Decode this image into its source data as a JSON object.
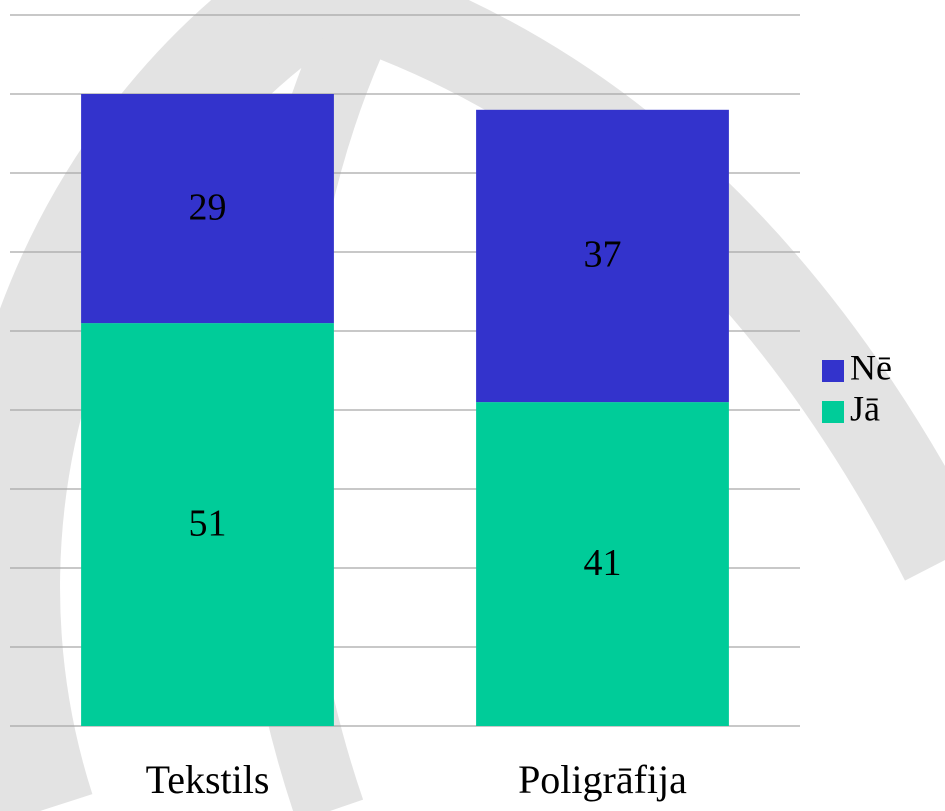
{
  "chart_data": {
    "type": "stacked-bar",
    "categories": [
      "Tekstils",
      "Poligrāfija"
    ],
    "series": [
      {
        "name": "Jā",
        "color": "#00cc99",
        "values": [
          51,
          41
        ]
      },
      {
        "name": "Nē",
        "color": "#3333cc",
        "values": [
          29,
          37
        ]
      }
    ],
    "ylim": [
      0,
      90
    ],
    "yticks": [
      0,
      10,
      20,
      30,
      40,
      50,
      60,
      70,
      80,
      90
    ],
    "grid": true,
    "legend": "right"
  }
}
